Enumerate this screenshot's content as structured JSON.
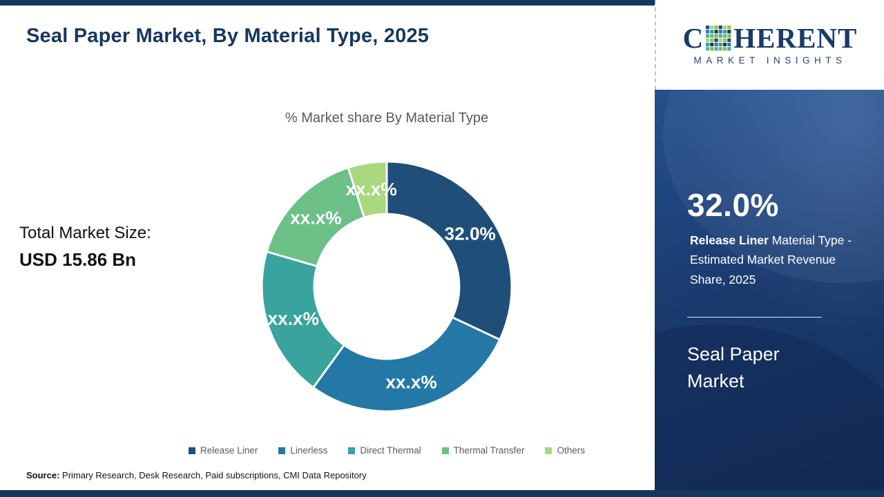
{
  "header": {
    "title": "Seal Paper Market, By Material Type, 2025"
  },
  "logo": {
    "part1": "C",
    "part2": "HERENT",
    "subtitle": "MARKET INSIGHTS"
  },
  "stats": {
    "total_label": "Total Market Size:",
    "total_value": "USD 15.86 Bn"
  },
  "chart_data": {
    "type": "pie",
    "donut": true,
    "title": "% Market share By Material Type",
    "legend_position": "bottom",
    "highlighted_value_label": "32.0%",
    "segments": [
      {
        "label": "Release Liner",
        "value": 32.0,
        "display": "32.0%",
        "color": "#1f4e79"
      },
      {
        "label": "Linerless",
        "value": 28.0,
        "display": "xx.x%",
        "color": "#2478a6"
      },
      {
        "label": "Direct Thermal",
        "value": 19.5,
        "display": "xx.x%",
        "color": "#3aa39e"
      },
      {
        "label": "Thermal Transfer",
        "value": 15.5,
        "display": "xx.x%",
        "color": "#6cc088"
      },
      {
        "label": "Others",
        "value": 5.0,
        "display": "xx.x%",
        "color": "#a9d87f"
      }
    ]
  },
  "panel": {
    "stat": "32.0%",
    "desc_bold": "Release Liner",
    "desc_rest": " Material Type - Estimated Market Revenue Share, 2025",
    "market": "Seal Paper Market"
  },
  "source": {
    "label": "Source:",
    "text": " Primary Research, Desk Research, Paid subscriptions, CMI Data Repository"
  }
}
